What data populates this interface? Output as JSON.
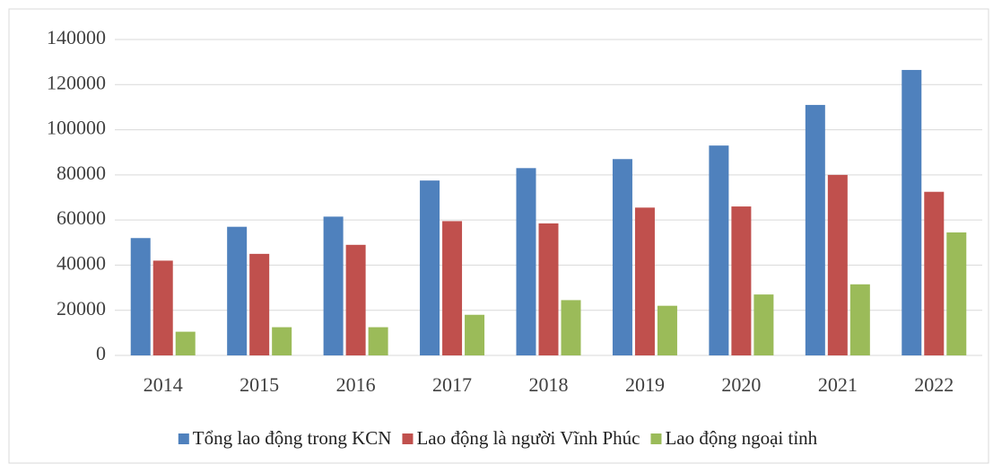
{
  "chart_data": {
    "type": "bar",
    "categories": [
      "2014",
      "2015",
      "2016",
      "2017",
      "2018",
      "2019",
      "2020",
      "2021",
      "2022"
    ],
    "series": [
      {
        "name": "Tổng lao động trong KCN",
        "color": "#4f81bd",
        "values": [
          52000,
          57000,
          61500,
          77500,
          83000,
          87000,
          93000,
          111000,
          126500
        ]
      },
      {
        "name": "Lao động là người Vĩnh Phúc",
        "color": "#c0504d",
        "values": [
          42000,
          45000,
          49000,
          59500,
          58500,
          65500,
          66000,
          80000,
          72500
        ]
      },
      {
        "name": "Lao động ngoại tỉnh",
        "color": "#9bbb59",
        "values": [
          10500,
          12500,
          12500,
          18000,
          24500,
          22000,
          27000,
          31500,
          54500
        ]
      }
    ],
    "ylim": [
      0,
      140000
    ],
    "yticks": [
      0,
      20000,
      40000,
      60000,
      80000,
      100000,
      120000,
      140000
    ],
    "grid": true,
    "legend": "bottom"
  }
}
